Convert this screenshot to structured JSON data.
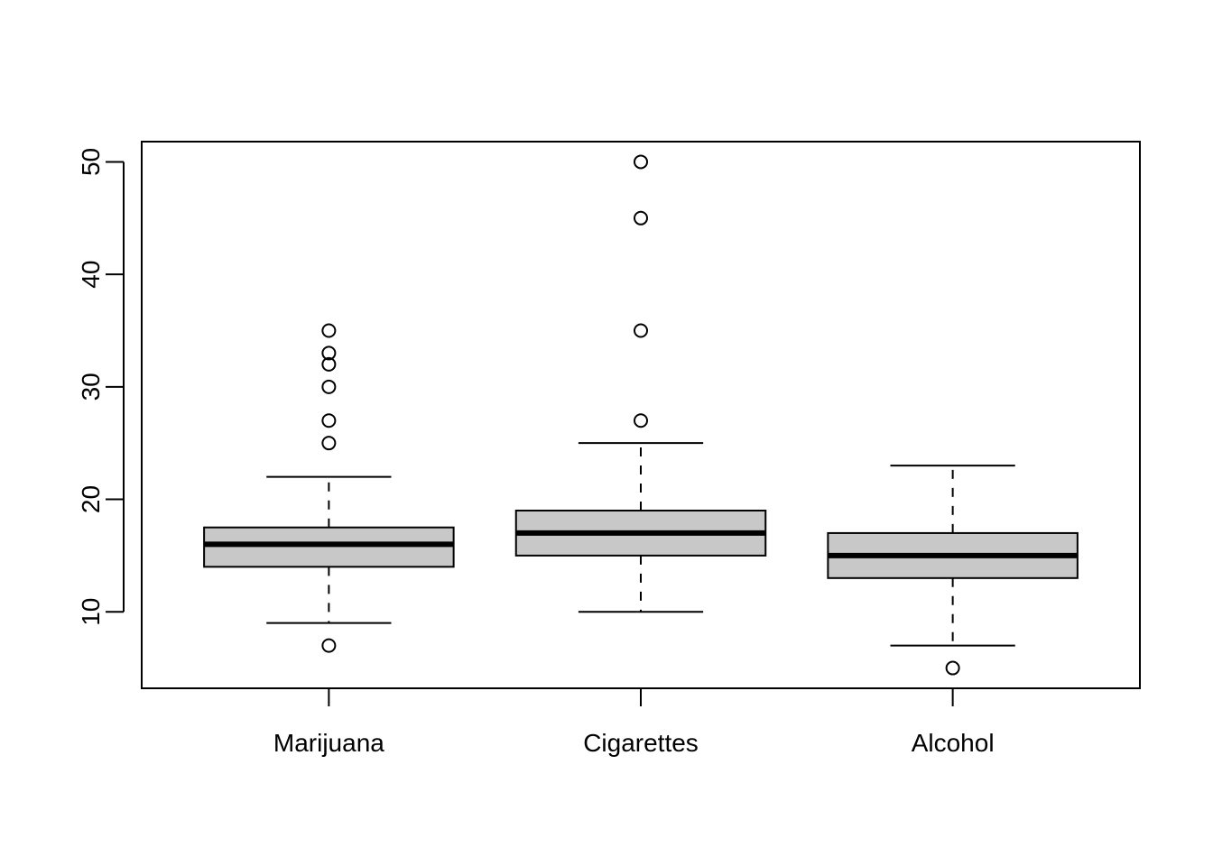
{
  "chart_data": {
    "type": "boxplot",
    "title": "",
    "xlabel": "",
    "ylabel": "",
    "ylim": [
      3.2,
      51.8
    ],
    "yticks": [
      10,
      20,
      30,
      40,
      50
    ],
    "ytick_labels": [
      "10",
      "20",
      "30",
      "40",
      "50"
    ],
    "grid": false,
    "colors": {
      "box_fill": "#c8c8c8",
      "stroke": "#000000",
      "background": "#ffffff"
    },
    "categories": [
      "Marijuana",
      "Cigarettes",
      "Alcohol"
    ],
    "boxes": [
      {
        "name": "Marijuana",
        "whisker_low": 9,
        "q1": 14,
        "median": 16,
        "q3": 17.5,
        "whisker_high": 22,
        "outliers": [
          7,
          25,
          27,
          30,
          32,
          33,
          35
        ]
      },
      {
        "name": "Cigarettes",
        "whisker_low": 10,
        "q1": 15,
        "median": 17,
        "q3": 19,
        "whisker_high": 25,
        "outliers": [
          27,
          35,
          45,
          50
        ]
      },
      {
        "name": "Alcohol",
        "whisker_low": 7,
        "q1": 13,
        "median": 15,
        "q3": 17,
        "whisker_high": 23,
        "outliers": [
          5
        ]
      }
    ]
  }
}
